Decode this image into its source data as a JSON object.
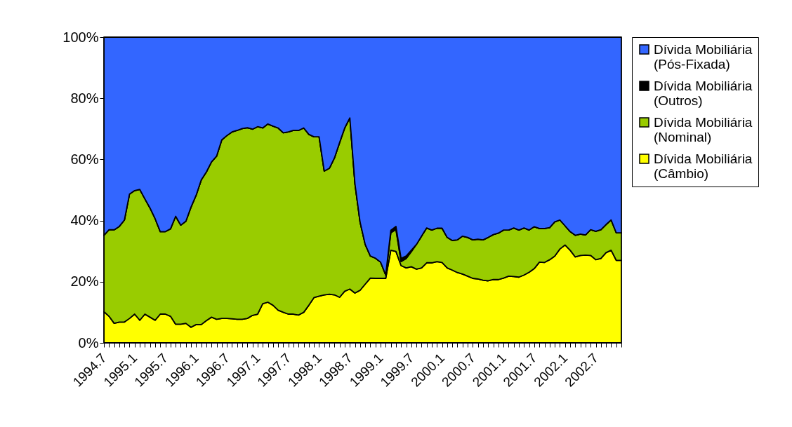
{
  "chart_data": {
    "type": "area",
    "stacked": true,
    "categories": [
      "1994.7",
      null,
      null,
      null,
      null,
      null,
      "1995.1",
      null,
      null,
      null,
      null,
      null,
      "1995.7",
      null,
      null,
      null,
      null,
      null,
      "1996.1",
      null,
      null,
      null,
      null,
      null,
      "1996.7",
      null,
      null,
      null,
      null,
      null,
      "1997.1",
      null,
      null,
      null,
      null,
      null,
      "1997.7",
      null,
      null,
      null,
      null,
      null,
      "1998.1",
      null,
      null,
      null,
      null,
      null,
      "1998.7",
      null,
      null,
      null,
      null,
      null,
      "1999.1",
      null,
      null,
      null,
      null,
      null,
      "1999.7",
      null,
      null,
      null,
      null,
      null,
      "2000.1",
      null,
      null,
      null,
      null,
      null,
      "2000.7",
      null,
      null,
      null,
      null,
      null,
      "2001.1",
      null,
      null,
      null,
      null,
      null,
      "2001.7",
      null,
      null,
      null,
      null,
      null,
      "2002.1",
      null,
      null,
      null,
      null,
      null,
      "2002.7",
      null,
      null,
      null,
      null,
      null
    ],
    "series": [
      {
        "name": "Dívida Mobiliária (Câmbio)",
        "color": "#ffff00",
        "values": [
          10.2,
          8.7,
          6.4,
          6.8,
          6.8,
          8.0,
          9.4,
          7.4,
          9.4,
          8.4,
          7.4,
          9.4,
          9.4,
          8.7,
          6.1,
          6.1,
          6.4,
          5.1,
          6.0,
          6.0,
          7.3,
          8.4,
          7.7,
          8.0,
          8.0,
          7.9,
          7.7,
          7.7,
          8.0,
          9.0,
          9.4,
          12.8,
          13.3,
          12.3,
          10.7,
          10.0,
          9.4,
          9.4,
          9.1,
          10.0,
          12.3,
          14.8,
          15.3,
          15.7,
          15.9,
          15.7,
          14.9,
          16.9,
          17.6,
          16.3,
          17.2,
          19.2,
          21.2,
          21.1,
          21.1,
          21.1,
          30.3,
          29.9,
          25.3,
          24.5,
          24.9,
          24.1,
          24.5,
          26.2,
          26.2,
          26.6,
          26.3,
          24.5,
          23.8,
          23.0,
          22.5,
          21.8,
          21.1,
          20.9,
          20.5,
          20.3,
          20.7,
          20.7,
          21.2,
          21.8,
          21.7,
          21.5,
          22.2,
          23.1,
          24.3,
          26.4,
          26.3,
          27.2,
          28.4,
          30.7,
          32.0,
          30.3,
          28.1,
          28.6,
          28.7,
          28.6,
          27.2,
          27.6,
          29.5,
          30.3,
          27.0,
          27.0
        ]
      },
      {
        "name": "Dívida Mobiliária (Nominal)",
        "color": "#99cc00",
        "values": [
          25.0,
          28.3,
          30.6,
          31.3,
          33.4,
          40.7,
          40.4,
          42.8,
          37.7,
          35.7,
          33.2,
          27.0,
          27.0,
          28.6,
          35.3,
          32.4,
          33.4,
          39.3,
          42.3,
          47.3,
          48.6,
          50.8,
          53.4,
          58.4,
          59.8,
          61.1,
          61.8,
          62.4,
          62.4,
          60.9,
          61.3,
          57.5,
          58.3,
          58.6,
          59.6,
          58.7,
          59.6,
          60.1,
          60.4,
          60.3,
          55.9,
          52.6,
          52.1,
          40.5,
          41.2,
          44.8,
          50.6,
          53.4,
          56.0,
          35.7,
          22.3,
          13.0,
          7.2,
          6.6,
          5.3,
          1.1,
          5.7,
          7.2,
          1.3,
          3.1,
          4.9,
          8.1,
          10.4,
          11.4,
          10.7,
          10.9,
          11.2,
          10.0,
          9.7,
          10.7,
          12.4,
          12.7,
          12.6,
          13.0,
          13.2,
          14.2,
          14.7,
          15.2,
          15.7,
          15.1,
          15.9,
          15.4,
          15.4,
          13.8,
          13.7,
          11.0,
          11.1,
          10.5,
          11.2,
          9.5,
          6.3,
          6.1,
          7.1,
          7.0,
          6.6,
          8.4,
          9.3,
          9.4,
          9.2,
          9.9,
          9.0,
          9.0
        ]
      },
      {
        "name": "Dívida Mobiliária (Outros)",
        "color": "#000000",
        "values": [
          0,
          0,
          0,
          0,
          0,
          0,
          0,
          0,
          0,
          0,
          0,
          0,
          0,
          0,
          0,
          0,
          0,
          0,
          0,
          0,
          0,
          0,
          0,
          0,
          0,
          0,
          0,
          0,
          0,
          0,
          0,
          0,
          0,
          0,
          0,
          0,
          0,
          0,
          0,
          0,
          0,
          0,
          0,
          0,
          0,
          0,
          0,
          0,
          0,
          0,
          0,
          0,
          0,
          0,
          0,
          0,
          0.8,
          1.0,
          1.0,
          0.8,
          0.5,
          0,
          0,
          0,
          0,
          0,
          0,
          0,
          0,
          0,
          0,
          0,
          0,
          0,
          0,
          0,
          0,
          0,
          0,
          0,
          0,
          0,
          0,
          0,
          0,
          0,
          0,
          0,
          0,
          0,
          0,
          0,
          0,
          0,
          0,
          0,
          0,
          0,
          0,
          0,
          0,
          0
        ]
      },
      {
        "name": "Dívida Mobiliária (Pós-Fixada)",
        "color": "#3366ff",
        "values": [
          64.8,
          63.0,
          63.0,
          61.9,
          59.8,
          51.3,
          50.2,
          49.8,
          52.9,
          55.9,
          59.4,
          63.6,
          63.6,
          62.7,
          58.6,
          61.5,
          60.2,
          55.6,
          51.7,
          46.7,
          44.1,
          40.8,
          38.9,
          33.6,
          32.2,
          31.0,
          30.5,
          29.9,
          29.6,
          30.1,
          29.3,
          29.7,
          28.4,
          29.1,
          29.7,
          31.3,
          31.0,
          30.5,
          30.5,
          29.7,
          31.8,
          32.6,
          32.6,
          43.8,
          42.9,
          39.5,
          34.5,
          29.7,
          26.4,
          48.0,
          60.5,
          67.8,
          71.6,
          72.3,
          73.6,
          77.8,
          63.2,
          61.9,
          72.4,
          71.6,
          69.7,
          67.8,
          65.1,
          62.4,
          63.1,
          62.5,
          62.5,
          65.5,
          66.5,
          66.3,
          65.1,
          65.5,
          66.3,
          66.1,
          66.3,
          65.5,
          64.6,
          64.1,
          63.1,
          63.1,
          62.4,
          63.1,
          62.4,
          63.1,
          62.0,
          62.6,
          62.6,
          62.3,
          60.4,
          59.8,
          61.7,
          63.6,
          64.8,
          64.4,
          64.7,
          63.0,
          63.5,
          63.0,
          61.3,
          59.8,
          64.0,
          64.0
        ]
      }
    ],
    "ylim": [
      0,
      100
    ],
    "yticks": [
      {
        "value": 0,
        "label": "0%"
      },
      {
        "value": 20,
        "label": "20%"
      },
      {
        "value": 40,
        "label": "40%"
      },
      {
        "value": 60,
        "label": "60%"
      },
      {
        "value": 80,
        "label": "80%"
      },
      {
        "value": 100,
        "label": "100%"
      }
    ],
    "grid": false,
    "legend": "right"
  }
}
